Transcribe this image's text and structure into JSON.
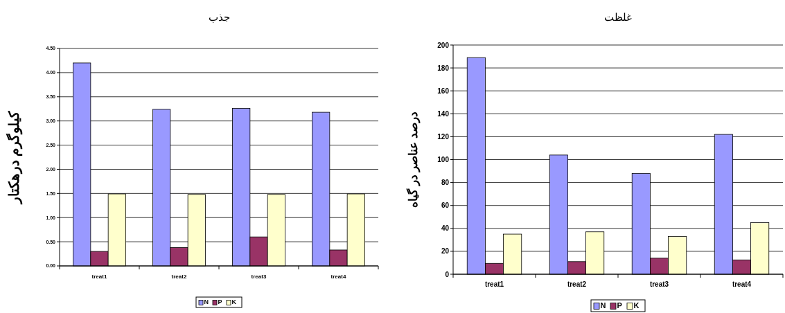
{
  "chart_data": [
    {
      "type": "bar",
      "title": "جذب",
      "ylabel": "کیلوگرم درهکتار",
      "categories": [
        "treat1",
        "treat2",
        "treat3",
        "treat4"
      ],
      "series": [
        {
          "name": "N",
          "color": "#9999ff",
          "values": [
            4.2,
            3.24,
            3.26,
            3.18
          ]
        },
        {
          "name": "P",
          "color": "#993366",
          "values": [
            0.3,
            0.38,
            0.6,
            0.33
          ]
        },
        {
          "name": "K",
          "color": "#ffffcc",
          "values": [
            1.49,
            1.48,
            1.48,
            1.49
          ]
        }
      ],
      "ylim": [
        0,
        4.5
      ],
      "yticks": [
        {
          "value": 0,
          "label": "0.00"
        },
        {
          "value": 0.5,
          "label": "0.50"
        },
        {
          "value": 1,
          "label": "1.00"
        },
        {
          "value": 1.5,
          "label": "1.50"
        },
        {
          "value": 2,
          "label": "2.00"
        },
        {
          "value": 2.5,
          "label": "2.50"
        },
        {
          "value": 3,
          "label": "3.00"
        },
        {
          "value": 3.5,
          "label": "3.50"
        },
        {
          "value": 4,
          "label": "4.00"
        },
        {
          "value": 4.5,
          "label": "4.50"
        }
      ],
      "grid": "y",
      "legend": "bottom"
    },
    {
      "type": "bar",
      "title": "غلظت",
      "ylabel": "درصد عناصر در گیاه",
      "categories": [
        "treat1",
        "treat2",
        "treat3",
        "treat4"
      ],
      "series": [
        {
          "name": "N",
          "color": "#9999ff",
          "values": [
            189,
            104,
            88,
            122
          ]
        },
        {
          "name": "P",
          "color": "#993366",
          "values": [
            9.5,
            11,
            14,
            12.5
          ]
        },
        {
          "name": "K",
          "color": "#ffffcc",
          "values": [
            35,
            37,
            33,
            45
          ]
        }
      ],
      "ylim": [
        0,
        200
      ],
      "yticks": [
        0,
        20,
        40,
        60,
        80,
        100,
        120,
        140,
        160,
        180,
        200
      ],
      "grid": "y",
      "legend": "bottom"
    }
  ]
}
